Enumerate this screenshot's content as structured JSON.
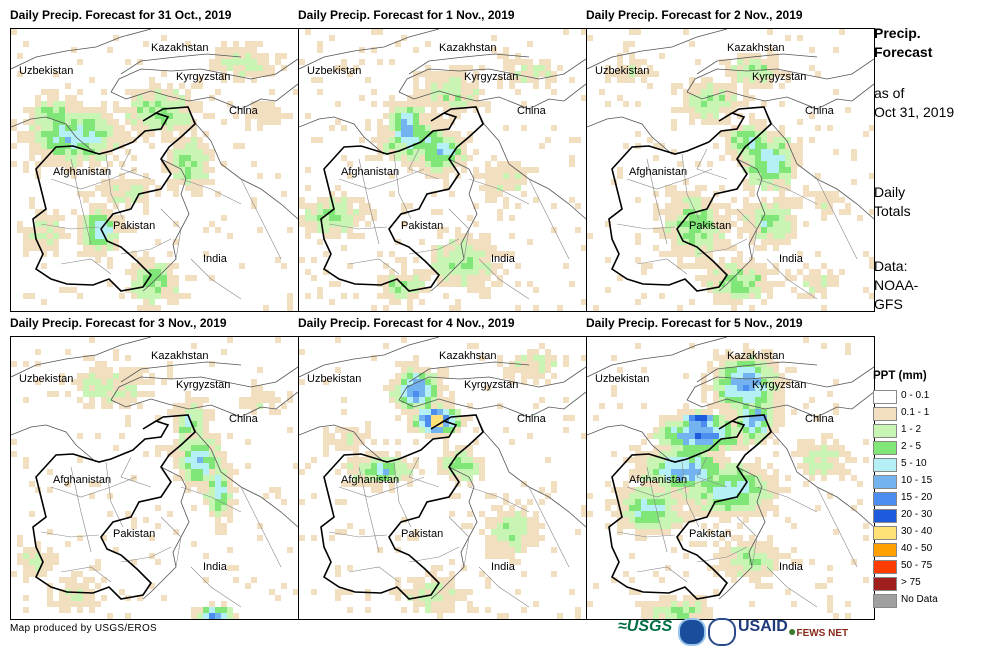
{
  "panels": [
    {
      "title": "Daily Precip. Forecast for 31 Oct., 2019",
      "day": 0
    },
    {
      "title": "Daily Precip. Forecast for 1 Nov., 2019",
      "day": 1
    },
    {
      "title": "Daily Precip. Forecast for 2 Nov., 2019",
      "day": 2
    },
    {
      "title": "Daily Precip. Forecast for 3 Nov., 2019",
      "day": 3
    },
    {
      "title": "Daily Precip. Forecast for 4 Nov., 2019",
      "day": 4
    },
    {
      "title": "Daily Precip. Forecast for 5 Nov., 2019",
      "day": 5
    }
  ],
  "map_labels": {
    "kazakhstan": "Kazakhstan",
    "uzbekistan": "Uzbekistan",
    "kyrgyzstan": "Kyrgyzstan",
    "china": "China",
    "afghanistan": "Afghanistan",
    "pakistan": "Pakistan",
    "india": "India"
  },
  "side": {
    "title_line1": "Precip.",
    "title_line2": "Forecast",
    "asof_line1": "as of",
    "asof_line2": "Oct 31, 2019",
    "daily_line1": "Daily",
    "daily_line2": "Totals",
    "data_line1": "Data:",
    "data_line2": "NOAA-",
    "data_line3": "GFS"
  },
  "legend": {
    "title": "PPT (mm)",
    "items": [
      {
        "label": "0 - 0.1",
        "color": "#ffffff"
      },
      {
        "label": "0.1 - 1",
        "color": "#f2dfc0"
      },
      {
        "label": "1 - 2",
        "color": "#c8f5b4"
      },
      {
        "label": "2 - 5",
        "color": "#80e678"
      },
      {
        "label": "5 - 10",
        "color": "#b4f0f5"
      },
      {
        "label": "10 - 15",
        "color": "#73b4f0"
      },
      {
        "label": "15 - 20",
        "color": "#4b8ef0"
      },
      {
        "label": "20 - 30",
        "color": "#1e5adc"
      },
      {
        "label": "30 - 40",
        "color": "#ffe178"
      },
      {
        "label": "40 - 50",
        "color": "#ffa000"
      },
      {
        "label": "50 - 75",
        "color": "#ff3c00"
      },
      {
        "label": "> 75",
        "color": "#a01e1e"
      },
      {
        "label": "No Data",
        "color": "#a0a0a0"
      }
    ]
  },
  "credit": "Map produced by USGS/EROS",
  "logos": {
    "usgs": "USGS",
    "usaid": "USAID",
    "fewsnet": "FEWS NET"
  }
}
